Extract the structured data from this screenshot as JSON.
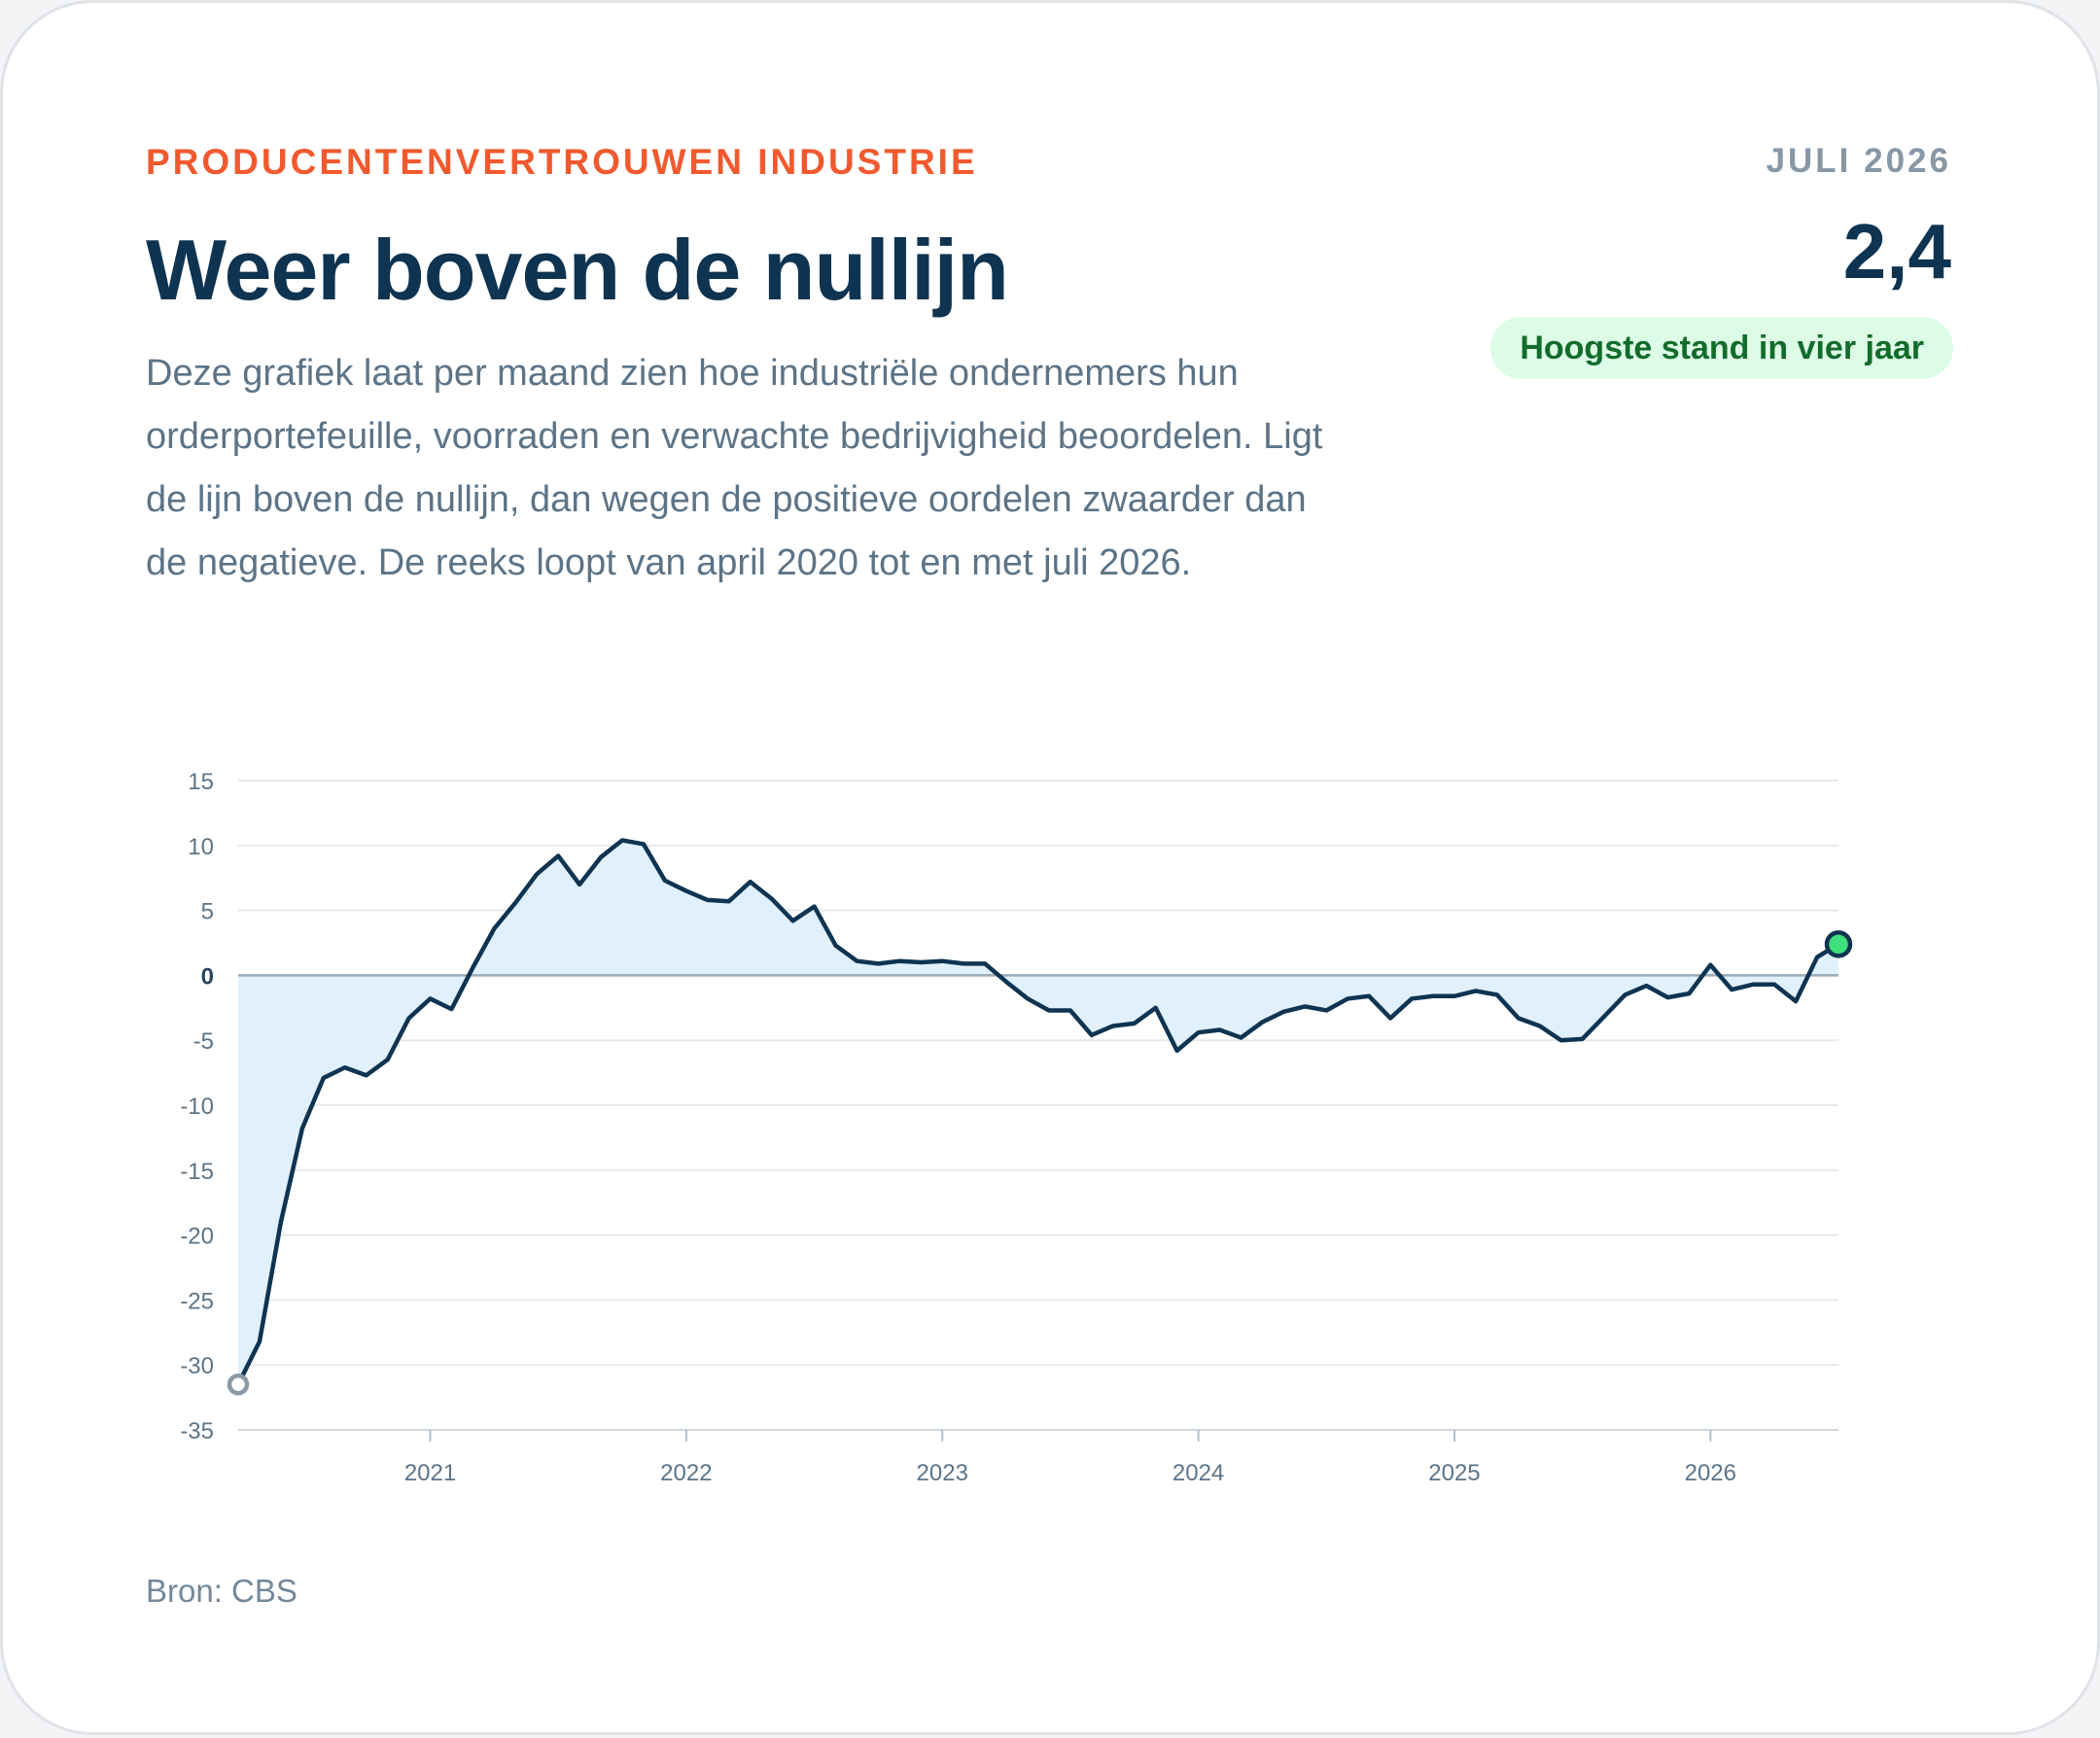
{
  "eyebrow": "PRODUCENTENVERTROUWEN INDUSTRIE",
  "headline": "Weer boven de nullijn",
  "description": "Deze grafiek laat per maand zien hoe industriële ondernemers hun orderportefeuille, voorraden en verwachte bedrijvigheid beoordelen. Ligt de lijn boven de nullijn, dan wegen de positieve oordelen zwaarder dan de negatieve. De reeks loopt van april 2020 tot en met juli 2026.",
  "kpi": {
    "period": "JULI 2026",
    "value": "2,4",
    "badge": "Hoogste stand in vier jaar"
  },
  "source": "Bron: CBS",
  "colors": {
    "accent": "#f05a2e",
    "line": "#0f3451",
    "area": "#e1f0fd",
    "grid": "#e6e9ed",
    "zero_line": "#9aabb8",
    "last_point": "#3ee07b",
    "first_point": "#ffffff"
  },
  "chart_data": {
    "type": "area",
    "title": "",
    "xlabel": "",
    "ylabel": "",
    "ylim": [
      -35,
      15
    ],
    "yticks": [
      15,
      10,
      5,
      0,
      -5,
      -10,
      -15,
      -20,
      -25,
      -30,
      -35
    ],
    "xticks": [
      "2021",
      "2022",
      "2023",
      "2024",
      "2025",
      "2026"
    ],
    "grid": true,
    "legend": "none",
    "start": "2020-04",
    "end": "2026-07",
    "frequency": "monthly",
    "series": [
      {
        "name": "",
        "values": [
          -31.5,
          -28.2,
          -19.0,
          -11.8,
          -7.9,
          -7.1,
          -7.7,
          -6.5,
          -3.3,
          -1.8,
          -2.6,
          0.6,
          3.6,
          5.6,
          7.8,
          9.2,
          7.0,
          9.1,
          10.4,
          10.1,
          7.3,
          6.5,
          5.8,
          5.7,
          7.2,
          5.9,
          4.2,
          5.3,
          2.3,
          1.1,
          0.9,
          1.1,
          1.0,
          1.1,
          0.9,
          0.9,
          -0.5,
          -1.8,
          -2.7,
          -2.7,
          -4.6,
          -3.9,
          -3.7,
          -2.5,
          -5.8,
          -4.4,
          -4.2,
          -4.8,
          -3.6,
          -2.8,
          -2.4,
          -2.7,
          -1.8,
          -1.6,
          -3.3,
          -1.8,
          -1.6,
          -1.6,
          -1.2,
          -1.5,
          -3.3,
          -3.9,
          -5.0,
          -4.9,
          -3.2,
          -1.5,
          -0.8,
          -1.7,
          -1.4,
          0.8,
          -1.1,
          -0.7,
          -0.7,
          -2.0,
          1.4,
          2.4
        ]
      }
    ]
  }
}
